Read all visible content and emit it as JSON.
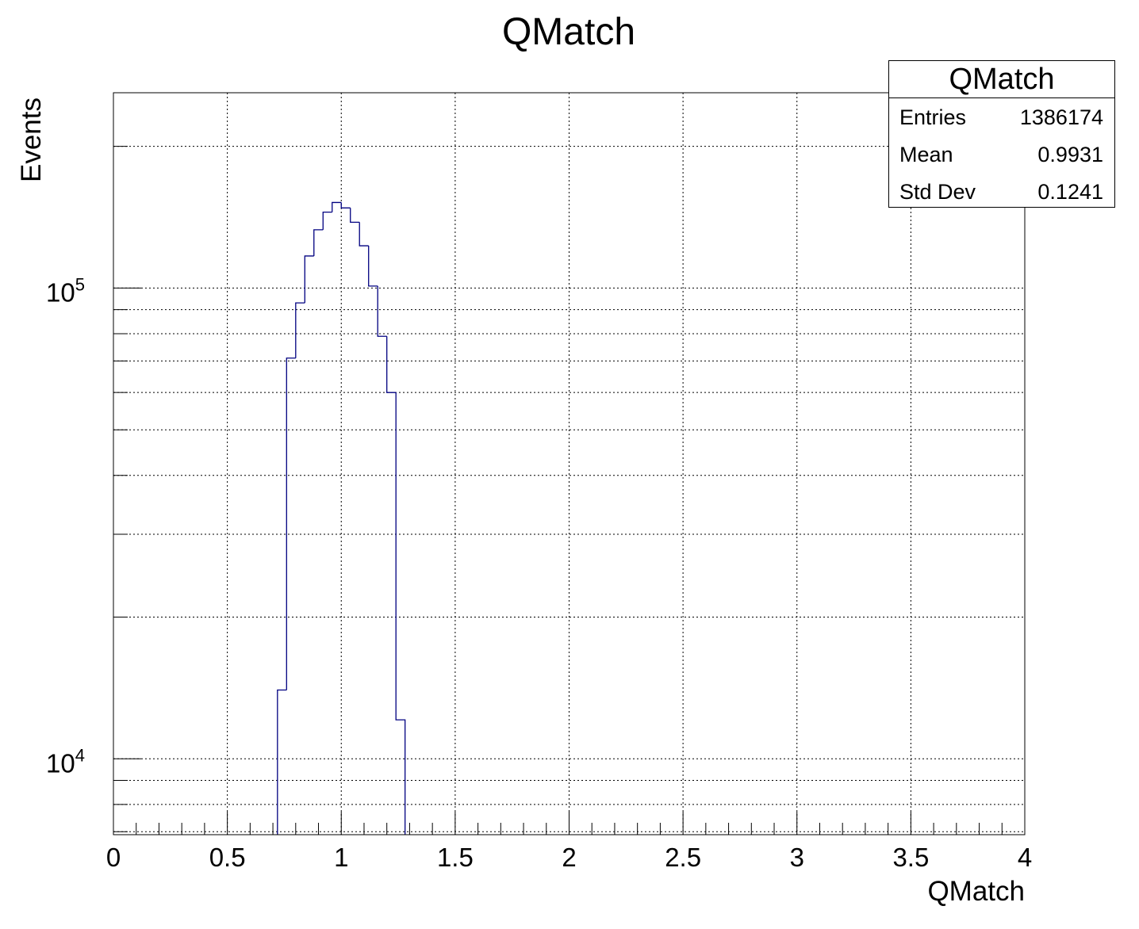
{
  "chart_data": {
    "type": "histogram",
    "title": "QMatch",
    "xlabel": "QMatch",
    "ylabel": "Events",
    "xlim": [
      0,
      4
    ],
    "ylim": [
      6900,
      260000
    ],
    "yscale": "log",
    "grid": true,
    "x_ticks": [
      0,
      0.5,
      1,
      1.5,
      2,
      2.5,
      3,
      3.5,
      4
    ],
    "x_tick_labels": [
      "0",
      "0.5",
      "1",
      "1.5",
      "2",
      "2.5",
      "3",
      "3.5",
      "4"
    ],
    "y_ticks": [
      10000,
      100000
    ],
    "y_tick_labels": [
      {
        "base": "10",
        "exp": "4"
      },
      {
        "base": "10",
        "exp": "5"
      }
    ],
    "line_color": "#000080",
    "bin_width": 0.04,
    "bin_edges": [
      0.72,
      0.76,
      0.8,
      0.84,
      0.88,
      0.92,
      0.96,
      1.0,
      1.04,
      1.08,
      1.12,
      1.16,
      1.2,
      1.24,
      1.28
    ],
    "values": [
      14000,
      71000,
      93000,
      117000,
      133000,
      145000,
      152000,
      148000,
      138000,
      123000,
      101000,
      79000,
      60000,
      12100
    ]
  },
  "stats_box": {
    "title": "QMatch",
    "rows": [
      {
        "key": "Entries",
        "value": "1386174"
      },
      {
        "key": "Mean",
        "value": "0.9931"
      },
      {
        "key": "Std Dev",
        "value": "0.1241"
      }
    ]
  }
}
